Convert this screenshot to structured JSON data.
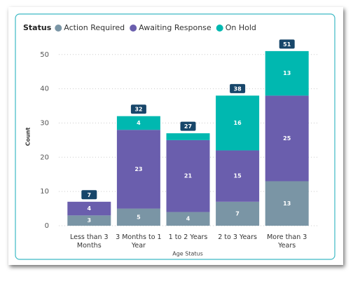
{
  "chart_data": {
    "type": "stacked_bar",
    "legend_title": "Status",
    "categories": [
      "Less than 3 Months",
      "3 Months to 1 Year",
      "1 to 2 Years",
      "2 to 3 Years",
      "More than 3 Years"
    ],
    "series": [
      {
        "name": "Action Required",
        "color": "#7a95a5",
        "values": [
          3,
          5,
          4,
          7,
          13
        ]
      },
      {
        "name": "Awaiting Response",
        "color": "#6a5ead",
        "values": [
          4,
          23,
          21,
          15,
          25
        ]
      },
      {
        "name": "On Hold",
        "color": "#00b8b0",
        "values": [
          null,
          4,
          2,
          16,
          13
        ]
      }
    ],
    "totals": [
      7,
      32,
      27,
      38,
      51
    ],
    "x_label": "Age Status",
    "y_label": "Count",
    "ylim": [
      0,
      52
    ],
    "yticks": [
      0,
      10,
      20,
      30,
      40,
      50
    ],
    "grid": true,
    "legend": "top-left"
  }
}
